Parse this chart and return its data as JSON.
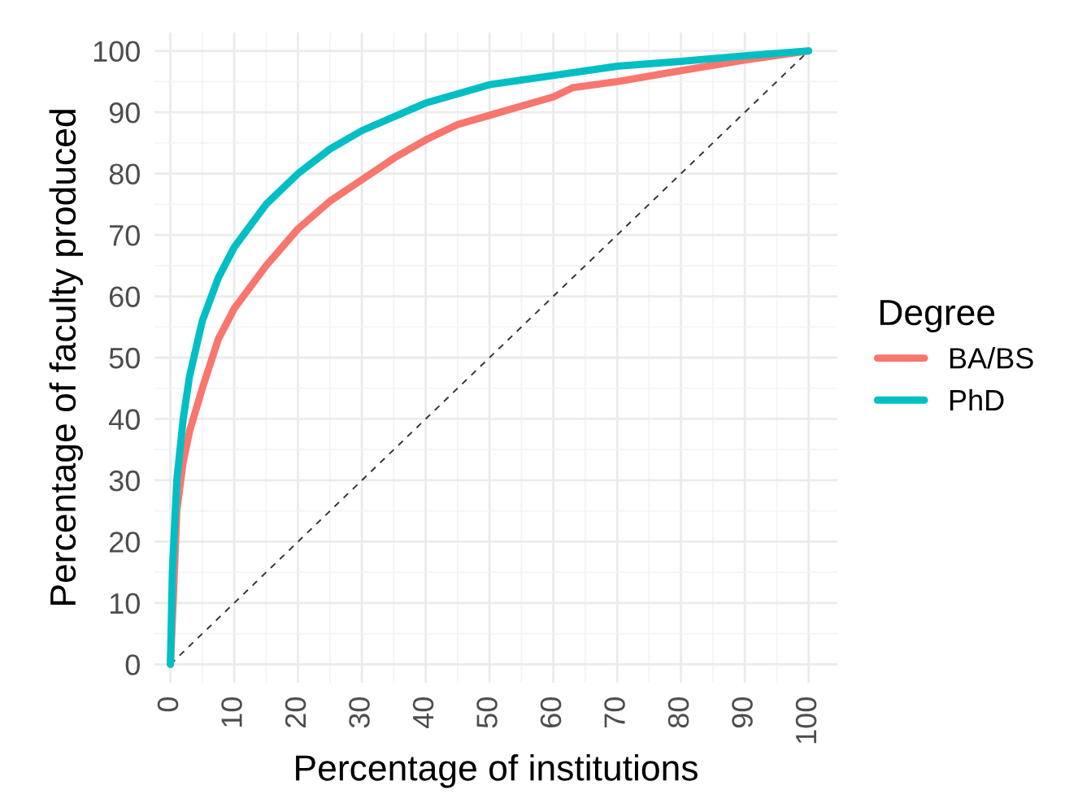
{
  "chart_data": {
    "type": "line",
    "xlabel": "Percentage of institutions",
    "ylabel": "Percentage of faculty produced",
    "legend_title": "Degree",
    "xlim": [
      -2.5,
      104.5
    ],
    "ylim": [
      -3,
      103
    ],
    "xticks": [
      0,
      10,
      20,
      30,
      40,
      50,
      60,
      70,
      80,
      90,
      100
    ],
    "yticks": [
      0,
      10,
      20,
      30,
      40,
      50,
      60,
      70,
      80,
      90,
      100
    ],
    "grid": true,
    "legend": "right",
    "marker": "none",
    "series": [
      {
        "name": "BA/BS",
        "color": "#f8766d",
        "line_style": "solid",
        "x": [
          0,
          0.5,
          1,
          2,
          3,
          5,
          7.5,
          10,
          15,
          20,
          25,
          30,
          35,
          40,
          45,
          50,
          55,
          60,
          63,
          70,
          80,
          90,
          100
        ],
        "values": [
          0,
          12,
          25,
          33,
          38,
          45,
          53,
          58,
          65,
          71,
          75.5,
          79,
          82.5,
          85.5,
          88,
          89.5,
          91,
          92.5,
          94,
          95,
          96.8,
          98.5,
          100
        ]
      },
      {
        "name": "PhD",
        "color": "#00bfc4",
        "line_style": "solid",
        "x": [
          0,
          0.3,
          1,
          2,
          3,
          5,
          7.5,
          10,
          15,
          20,
          25,
          30,
          40,
          50,
          60,
          70,
          80,
          90,
          100
        ],
        "values": [
          0,
          15,
          30,
          40,
          47,
          56,
          63,
          68,
          75,
          80,
          84,
          87,
          91.5,
          94.5,
          96,
          97.5,
          98.3,
          99.2,
          100
        ]
      },
      {
        "color": "#333333",
        "line_style": "dashed",
        "x": [
          0,
          100
        ],
        "values": [
          0,
          100
        ]
      }
    ]
  }
}
